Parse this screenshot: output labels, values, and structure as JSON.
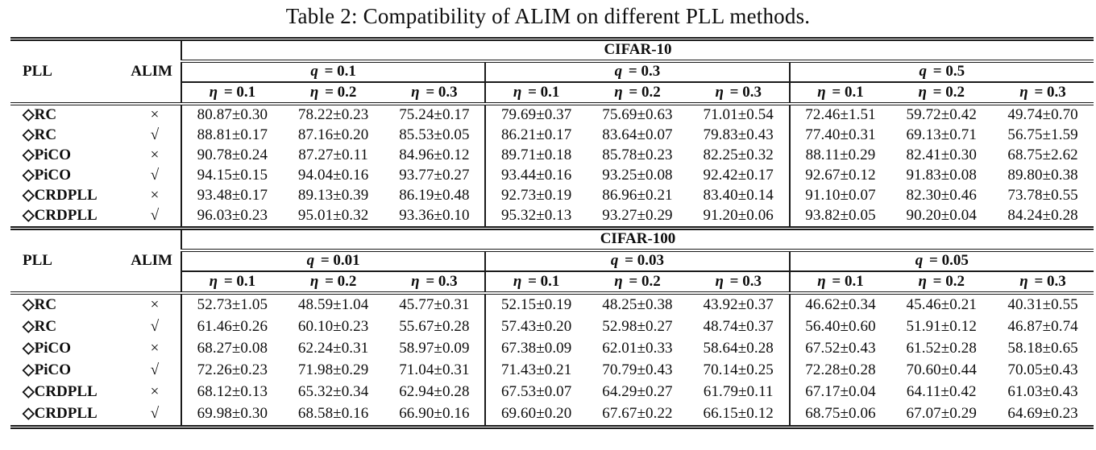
{
  "title": "Table 2: Compatibility of ALIM on different PLL methods.",
  "columns": {
    "pll": "PLL",
    "alim": "ALIM"
  },
  "sections": [
    {
      "dataset": "CIFAR-10",
      "q_headers": [
        "q = 0.1",
        "q = 0.3",
        "q = 0.5"
      ],
      "eta_headers": [
        "η = 0.1",
        "η = 0.2",
        "η = 0.3"
      ],
      "rows": [
        {
          "pll": "◇RC",
          "alim": "×",
          "values": [
            "80.87±0.30",
            "78.22±0.23",
            "75.24±0.17",
            "79.69±0.37",
            "75.69±0.63",
            "71.01±0.54",
            "72.46±1.51",
            "59.72±0.42",
            "49.74±0.70"
          ]
        },
        {
          "pll": "◇RC",
          "alim": "√",
          "values": [
            "88.81±0.17",
            "87.16±0.20",
            "85.53±0.05",
            "86.21±0.17",
            "83.64±0.07",
            "79.83±0.43",
            "77.40±0.31",
            "69.13±0.71",
            "56.75±1.59"
          ]
        },
        {
          "pll": "◇PiCO",
          "alim": "×",
          "values": [
            "90.78±0.24",
            "87.27±0.11",
            "84.96±0.12",
            "89.71±0.18",
            "85.78±0.23",
            "82.25±0.32",
            "88.11±0.29",
            "82.41±0.30",
            "68.75±2.62"
          ]
        },
        {
          "pll": "◇PiCO",
          "alim": "√",
          "values": [
            "94.15±0.15",
            "94.04±0.16",
            "93.77±0.27",
            "93.44±0.16",
            "93.25±0.08",
            "92.42±0.17",
            "92.67±0.12",
            "91.83±0.08",
            "89.80±0.38"
          ]
        },
        {
          "pll": "◇CRDPLL",
          "alim": "×",
          "values": [
            "93.48±0.17",
            "89.13±0.39",
            "86.19±0.48",
            "92.73±0.19",
            "86.96±0.21",
            "83.40±0.14",
            "91.10±0.07",
            "82.30±0.46",
            "73.78±0.55"
          ]
        },
        {
          "pll": "◇CRDPLL",
          "alim": "√",
          "values": [
            "96.03±0.23",
            "95.01±0.32",
            "93.36±0.10",
            "95.32±0.13",
            "93.27±0.29",
            "91.20±0.06",
            "93.82±0.05",
            "90.20±0.04",
            "84.24±0.28"
          ]
        }
      ]
    },
    {
      "dataset": "CIFAR-100",
      "q_headers": [
        "q = 0.01",
        "q = 0.03",
        "q = 0.05"
      ],
      "eta_headers": [
        "η = 0.1",
        "η = 0.2",
        "η = 0.3"
      ],
      "rows": [
        {
          "pll": "◇RC",
          "alim": "×",
          "values": [
            "52.73±1.05",
            "48.59±1.04",
            "45.77±0.31",
            "52.15±0.19",
            "48.25±0.38",
            "43.92±0.37",
            "46.62±0.34",
            "45.46±0.21",
            "40.31±0.55"
          ]
        },
        {
          "pll": "◇RC",
          "alim": "√",
          "values": [
            "61.46±0.26",
            "60.10±0.23",
            "55.67±0.28",
            "57.43±0.20",
            "52.98±0.27",
            "48.74±0.37",
            "56.40±0.60",
            "51.91±0.12",
            "46.87±0.74"
          ]
        },
        {
          "pll": "◇PiCO",
          "alim": "×",
          "values": [
            "68.27±0.08",
            "62.24±0.31",
            "58.97±0.09",
            "67.38±0.09",
            "62.01±0.33",
            "58.64±0.28",
            "67.52±0.43",
            "61.52±0.28",
            "58.18±0.65"
          ]
        },
        {
          "pll": "◇PiCO",
          "alim": "√",
          "values": [
            "72.26±0.23",
            "71.98±0.29",
            "71.04±0.31",
            "71.43±0.21",
            "70.79±0.43",
            "70.14±0.25",
            "72.28±0.28",
            "70.60±0.44",
            "70.05±0.43"
          ]
        },
        {
          "pll": "◇CRDPLL",
          "alim": "×",
          "values": [
            "68.12±0.13",
            "65.32±0.34",
            "62.94±0.28",
            "67.53±0.07",
            "64.29±0.27",
            "61.79±0.11",
            "67.17±0.04",
            "64.11±0.42",
            "61.03±0.43"
          ]
        },
        {
          "pll": "◇CRDPLL",
          "alim": "√",
          "values": [
            "69.98±0.30",
            "68.58±0.16",
            "66.90±0.16",
            "69.60±0.20",
            "67.67±0.22",
            "66.15±0.12",
            "68.75±0.06",
            "67.07±0.29",
            "64.69±0.23"
          ]
        }
      ]
    }
  ],
  "colors": {
    "text": "#0e0e0e",
    "rule": "#1a1a1a",
    "background": "#ffffff"
  }
}
